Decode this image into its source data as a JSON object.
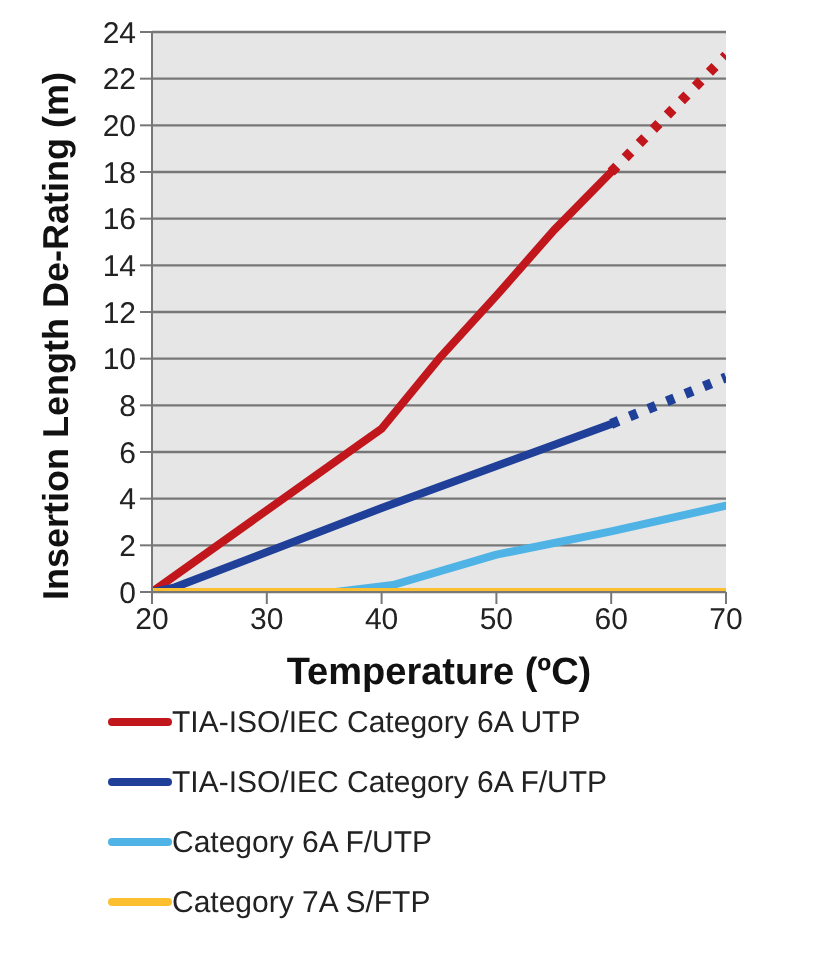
{
  "chart_data": {
    "type": "line",
    "xlabel": "Temperature (ºC)",
    "ylabel": "Insertion Length De-Rating (m)",
    "xlim": [
      20,
      70
    ],
    "xticks": [
      20,
      30,
      40,
      50,
      60,
      70
    ],
    "ylim": [
      0,
      24
    ],
    "yticks": [
      0,
      2,
      4,
      6,
      8,
      10,
      12,
      14,
      16,
      18,
      20,
      22,
      24
    ],
    "grid": "y",
    "legend": "bottom",
    "marker": "none",
    "series": [
      {
        "name": "TIA-ISO/IEC Category 6A UTP",
        "color": "#c0161c",
        "x": [
          20,
          38,
          40,
          45,
          50,
          55,
          60
        ],
        "values": [
          0,
          6.3,
          7,
          10,
          12.7,
          15.5,
          18
        ]
      },
      {
        "color": "#c0161c",
        "line_style": "dotted",
        "x": [
          60,
          70
        ],
        "values": [
          18,
          23
        ]
      },
      {
        "name": "TIA-ISO/IEC Category 6A F/UTP",
        "color": "#1f3f99",
        "x": [
          20,
          22,
          40,
          60
        ],
        "values": [
          0,
          0.2,
          3.6,
          7.2
        ]
      },
      {
        "color": "#1f3f99",
        "line_style": "dotted",
        "x": [
          60,
          70
        ],
        "values": [
          7.2,
          9.2
        ]
      },
      {
        "name": "Category 6A F/UTP",
        "color": "#4fb3e6",
        "x": [
          36,
          41,
          50,
          60,
          70
        ],
        "values": [
          0,
          0.3,
          1.6,
          2.6,
          3.7
        ]
      },
      {
        "name": "Category 7A S/FTP",
        "color": "#fcbf30",
        "x": [
          20,
          70
        ],
        "values": [
          0,
          0
        ]
      }
    ]
  }
}
